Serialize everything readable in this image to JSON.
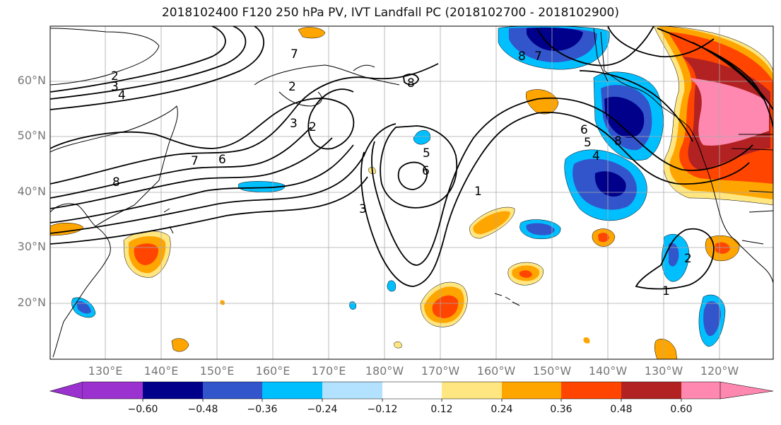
{
  "title": "2018102400 F120 250 hPa PV, IVT Landfall PC (2018102700 - 2018102900)",
  "axes": {
    "lat_labels": [
      "60°N",
      "50°N",
      "40°N",
      "30°N",
      "20°N"
    ],
    "lon_labels": [
      "130°E",
      "140°E",
      "150°E",
      "160°E",
      "170°E",
      "180°W",
      "170°W",
      "160°W",
      "150°W",
      "140°W",
      "130°W",
      "120°W"
    ]
  },
  "contour_labels": [
    "2",
    "3",
    "4",
    "7",
    "8",
    "7",
    "8",
    "2",
    "3",
    "2",
    "5",
    "6",
    "1",
    "3",
    "7",
    "6",
    "8",
    "6",
    "5",
    "4",
    "8",
    "1",
    "2"
  ],
  "colorbar": {
    "tick_labels": [
      "−0.60",
      "−0.48",
      "−0.36",
      "−0.24",
      "−0.12",
      "0.12",
      "0.24",
      "0.36",
      "0.48",
      "0.60"
    ],
    "colors": [
      "#9b32cf",
      "#00008b",
      "#3355cc",
      "#00bfff",
      "#b2e2ff",
      "#ffffff",
      "#ffe680",
      "#ffa500",
      "#ff4500",
      "#b22222",
      "#ff88b0"
    ]
  },
  "colors": {
    "neg_deep": "#00008b",
    "neg_mid": "#3355cc",
    "neg_light": "#00bfff",
    "pos_yellow": "#ffe680",
    "pos_orange": "#ffa500",
    "pos_red": "#ff4500",
    "pos_darkred": "#b22222",
    "pos_pink": "#ff88b0"
  }
}
